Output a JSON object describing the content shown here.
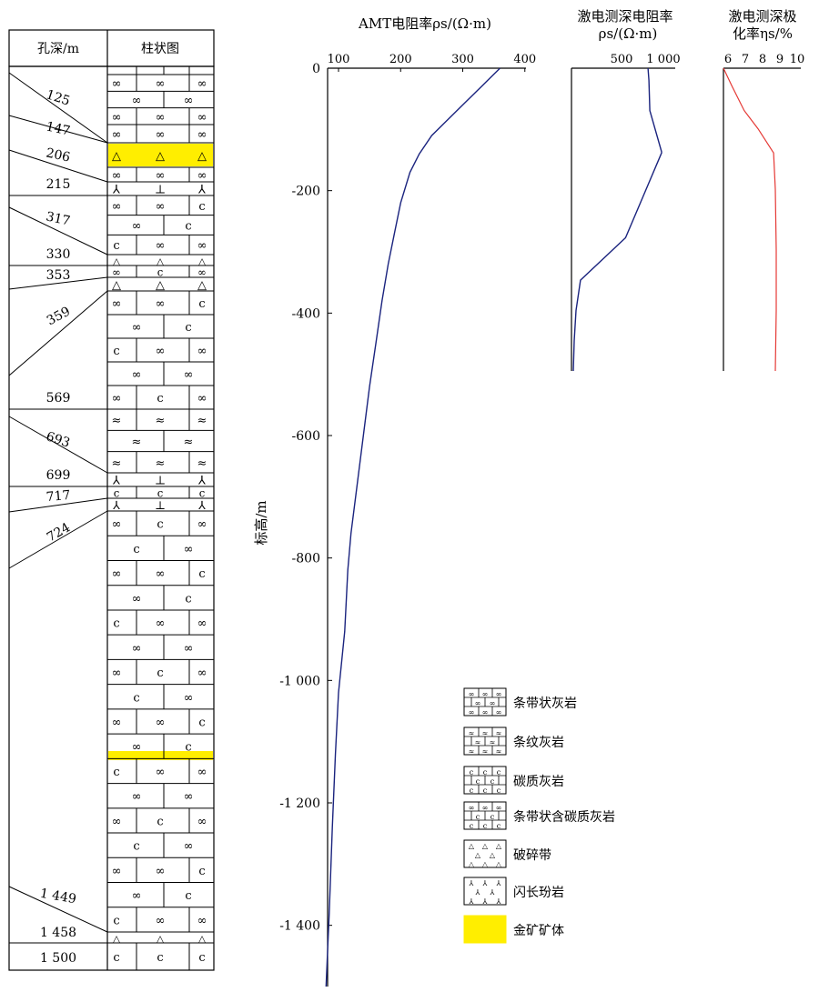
{
  "column": {
    "header_depth": "孔深/m",
    "header_log": "柱状图",
    "depth_labels": [
      "125",
      "147",
      "206",
      "215",
      "317",
      "330",
      "353",
      "359",
      "569",
      "693",
      "699",
      "717",
      "724",
      "1 449",
      "1 458",
      "1 500"
    ],
    "layers": [
      {
        "depth_label": "125",
        "lith": "banded_ls",
        "rows": 3,
        "symbols": [
          "∞",
          "∞",
          "∞"
        ]
      },
      {
        "depth_label": "147",
        "lith": "banded_ls",
        "rows": 1,
        "symbols": [
          "∞",
          "∞",
          "∞"
        ]
      },
      {
        "depth_label": "",
        "lith": "breccia_ore",
        "rows": 1,
        "symbols": [
          "△",
          "△",
          "△"
        ]
      },
      {
        "depth_label": "206",
        "lith": "mixed",
        "rows": 1,
        "symbols": [
          "∞",
          "∞",
          "∞"
        ]
      },
      {
        "depth_label": "215",
        "lith": "diorite",
        "rows": 1,
        "symbols": [
          "⅄",
          "⊥",
          "⅄"
        ]
      },
      {
        "depth_label": "317",
        "lith": "banded_ls",
        "rows": 3,
        "symbols": [
          "∞",
          "∞",
          "c"
        ]
      },
      {
        "depth_label": "330",
        "lith": "breccia",
        "rows": 1,
        "symbols": [
          "△",
          "△",
          "△"
        ]
      },
      {
        "depth_label": "353",
        "lith": "banded_carb",
        "rows": 1,
        "symbols": [
          "∞",
          "c",
          "∞"
        ]
      },
      {
        "depth_label": "359",
        "lith": "breccia",
        "rows": 1,
        "symbols": [
          "△",
          "△",
          "△"
        ]
      },
      {
        "depth_label": "569",
        "lith": "banded_ls",
        "rows": 5,
        "symbols": [
          "∞",
          "∞",
          "c"
        ]
      },
      {
        "depth_label": "693",
        "lith": "striped_ls",
        "rows": 3,
        "symbols": [
          "≈",
          "≈",
          "≈"
        ]
      },
      {
        "depth_label": "699",
        "lith": "diorite",
        "rows": 1,
        "symbols": [
          "⅄",
          "⊥",
          "⅄"
        ]
      },
      {
        "depth_label": "717",
        "lith": "carb_ls",
        "rows": 1,
        "symbols": [
          "c",
          "c",
          "c"
        ]
      },
      {
        "depth_label": "724",
        "lith": "diorite",
        "rows": 1,
        "symbols": [
          "⅄",
          "⊥",
          "⅄"
        ]
      },
      {
        "depth_label": "1 449",
        "lith": "banded_ls",
        "rows": 17,
        "symbols": [
          "∞",
          "c",
          "∞"
        ]
      },
      {
        "depth_label": "1 458",
        "lith": "breccia",
        "rows": 1,
        "symbols": [
          "△",
          "△",
          "△"
        ]
      },
      {
        "depth_label": "1 500",
        "lith": "carb_ls",
        "rows": 1,
        "symbols": [
          "c",
          "c",
          "c"
        ]
      }
    ]
  },
  "chart_data": [
    {
      "type": "line",
      "title": "AMT电阻率ρs/(Ω·m)",
      "xlabel": "AMT电阻率ρs/(Ω·m)",
      "ylabel": "标高/m",
      "xlim": [
        80,
        400
      ],
      "ylim": [
        -1500,
        0
      ],
      "xticks": [
        100,
        200,
        300,
        400
      ],
      "yticks": [
        0,
        -200,
        -400,
        -600,
        -800,
        -1000,
        -1200,
        -1400
      ],
      "ytick_labels": [
        "0",
        "-200",
        "-400",
        "-600",
        "-800",
        "-1 000",
        "-1 200",
        "-1 400"
      ],
      "series": [
        {
          "color": "#1a237e",
          "x": [
            360,
            350,
            330,
            300,
            270,
            250,
            230,
            215,
            200,
            190,
            180,
            170,
            160,
            150,
            140,
            130,
            120,
            115,
            110,
            100,
            95,
            90,
            85,
            80
          ],
          "y": [
            0,
            -10,
            -30,
            -60,
            -90,
            -110,
            -140,
            -170,
            -220,
            -270,
            -320,
            -380,
            -450,
            -520,
            -600,
            -680,
            -760,
            -820,
            -920,
            -1020,
            -1120,
            -1240,
            -1380,
            -1500
          ]
        }
      ]
    },
    {
      "type": "line",
      "title": "激电测深电阻率ρs/(Ω·m)",
      "title_lines": [
        "激电测深电阻率",
        "ρs/(Ω·m)"
      ],
      "xlim": [
        0,
        1300
      ],
      "ylim": [
        -500,
        0
      ],
      "xticks": [
        500,
        1000
      ],
      "xtick_labels": [
        "500",
        "1 000"
      ],
      "series": [
        {
          "color": "#1a237e",
          "x": [
            850,
            860,
            870,
            1000,
            1000,
            800,
            600,
            100,
            50,
            30,
            20
          ],
          "y": [
            0,
            -20,
            -70,
            -138,
            -140,
            -210,
            -280,
            -350,
            -400,
            -450,
            -500
          ]
        }
      ]
    },
    {
      "type": "line",
      "title": "激电测深极化率ηs/%",
      "title_lines": [
        "激电测深极化率ηs/%"
      ],
      "xlim": [
        6,
        10
      ],
      "ylim": [
        -500,
        0
      ],
      "xticks": [
        6,
        7,
        8,
        9,
        10
      ],
      "series": [
        {
          "color": "#e53935",
          "x": [
            6.0,
            6.5,
            7.2,
            8.0,
            8.9,
            9.0,
            9.05,
            9.05,
            9.0
          ],
          "y": [
            0,
            -30,
            -70,
            -100,
            -140,
            -200,
            -300,
            -400,
            -500
          ]
        }
      ]
    }
  ],
  "legend": {
    "items": [
      {
        "label": "条带状灰岩",
        "key": "banded_ls"
      },
      {
        "label": "条纹灰岩",
        "key": "striped_ls"
      },
      {
        "label": "碳质灰岩",
        "key": "carb_ls"
      },
      {
        "label": "条带状含碳质灰岩",
        "key": "banded_carb"
      },
      {
        "label": "破碎带",
        "key": "breccia"
      },
      {
        "label": "闪长玢岩",
        "key": "diorite"
      },
      {
        "label": "金矿矿体",
        "key": "ore"
      }
    ]
  },
  "colors": {
    "ore": "#ffee00",
    "amt_line": "#1a237e",
    "res_line": "#1a237e",
    "eta_line": "#e53935"
  }
}
